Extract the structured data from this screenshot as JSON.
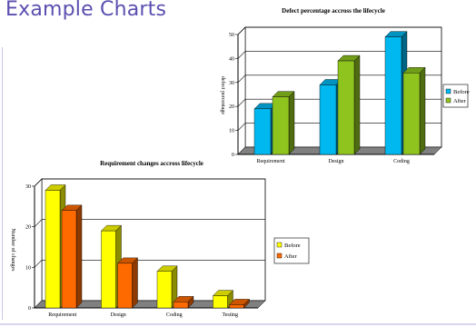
{
  "slide": {
    "title": "Example Charts"
  },
  "chart_data": [
    {
      "type": "bar",
      "title": "Defect percentage accross the lifecycle",
      "xlabel": "",
      "ylabel": "defect percentage",
      "ylim": [
        0,
        50
      ],
      "yticks": [
        0,
        10,
        20,
        30,
        40,
        50
      ],
      "grid": true,
      "legend": "right",
      "categories": [
        "Requirement",
        "Design",
        "Coding"
      ],
      "series": [
        {
          "name": "Before",
          "values": [
            19,
            29,
            49
          ],
          "color": "#00b8f0"
        },
        {
          "name": "After",
          "values": [
            24,
            39,
            34
          ],
          "color": "#8fc41f"
        }
      ]
    },
    {
      "type": "bar",
      "title": "Requirement changes accross lifecycle",
      "xlabel": "",
      "ylabel": "Number of changes",
      "ylim": [
        0,
        30
      ],
      "yticks": [
        0,
        10,
        20,
        30
      ],
      "grid": true,
      "legend": "right",
      "categories": [
        "Requirement",
        "Design",
        "Coding",
        "Testing"
      ],
      "series": [
        {
          "name": "Before",
          "values": [
            29,
            19,
            9,
            3
          ],
          "color": "#ffff00"
        },
        {
          "name": "After",
          "values": [
            24,
            11,
            1.5,
            0.8
          ],
          "color": "#ff6a00"
        }
      ]
    }
  ]
}
